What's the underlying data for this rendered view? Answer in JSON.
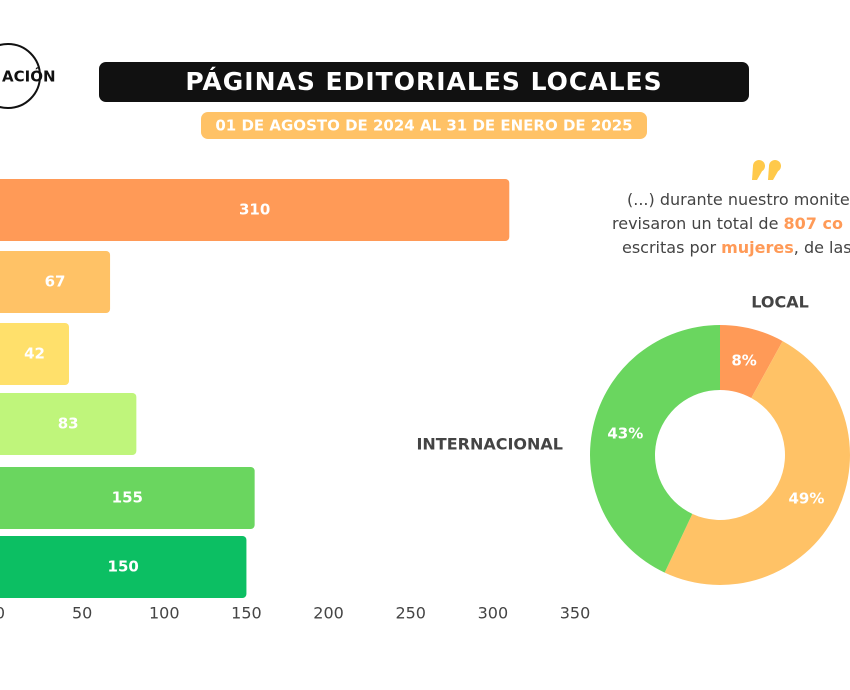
{
  "header": {
    "logo": "ACIÓN",
    "title": "PÁGINAS EDITORIALES LOCALES",
    "subtitle": "01 DE AGOSTO DE 2024 AL 31 DE ENERO DE 2025"
  },
  "quote": {
    "lines": [
      [
        {
          "text": "(...) durante nuestro monite",
          "strong": false
        }
      ],
      [
        {
          "text": "revisaron un total de ",
          "strong": false
        },
        {
          "text": "807 co",
          "strong": true
        }
      ],
      [
        {
          "text": "escritas por ",
          "strong": false
        },
        {
          "text": "mujeres",
          "strong": true
        },
        {
          "text": ", de las",
          "strong": false
        }
      ]
    ]
  },
  "chart_data": [
    {
      "type": "barh",
      "categories": [
        null,
        null,
        null,
        null,
        null,
        null
      ],
      "values": [
        310,
        67,
        42,
        83,
        155,
        150
      ],
      "colors": [
        "#ff9a57",
        "#ffc266",
        "#ffe06b",
        "#bff57b",
        "#6ad65f",
        "#0cbf63"
      ],
      "xlim": [
        0,
        350
      ],
      "xticks": [
        0,
        50,
        100,
        150,
        200,
        250,
        300,
        350
      ]
    },
    {
      "type": "donut",
      "values": [
        8,
        49,
        43
      ],
      "value_labels": [
        "8%",
        "49%",
        "43%"
      ],
      "colors": [
        "#ff9a57",
        "#ffc266",
        "#6ad65f"
      ],
      "annotations": [
        "LOCAL",
        "INTERNACIONAL"
      ]
    }
  ]
}
